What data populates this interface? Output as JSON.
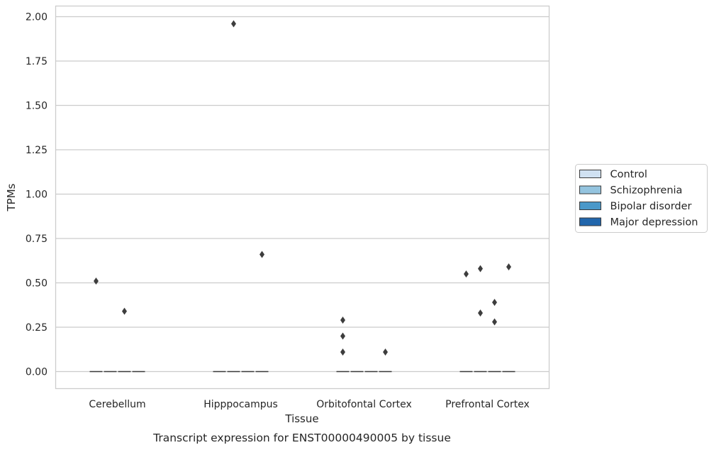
{
  "chart_data": {
    "type": "box",
    "caption": "Transcript expression for ENST00000490005 by tissue",
    "xlabel": "Tissue",
    "ylabel": "TPMs",
    "ylim": [
      -0.1,
      2.06
    ],
    "yticks": [
      "0.00",
      "0.25",
      "0.50",
      "0.75",
      "1.00",
      "1.25",
      "1.50",
      "1.75",
      "2.00"
    ],
    "categories": [
      "Cerebellum",
      "Hipppocampus",
      "Orbitofontal Cortex",
      "Prefrontal Cortex"
    ],
    "grid": true,
    "legend_position": "right",
    "series": [
      {
        "name": "Control",
        "color": "#d0e1f2",
        "medians": [
          0,
          0,
          0,
          0
        ],
        "outliers": [
          [
            0.51
          ],
          [],
          [
            0.29,
            0.2,
            0.11
          ],
          [
            0.55
          ]
        ]
      },
      {
        "name": "Schizophrenia",
        "color": "#94c4df",
        "medians": [
          0,
          0,
          0,
          0
        ],
        "outliers": [
          [],
          [
            1.96
          ],
          [],
          [
            0.58,
            0.33
          ]
        ]
      },
      {
        "name": "Bipolar disorder",
        "color": "#4a98c9",
        "medians": [
          0,
          0,
          0,
          0
        ],
        "outliers": [
          [
            0.34
          ],
          [],
          [],
          [
            0.39,
            0.28
          ]
        ]
      },
      {
        "name": "Major depression",
        "color": "#2166ac",
        "medians": [
          0,
          0,
          0,
          0
        ],
        "outliers": [
          [],
          [
            0.66
          ],
          [
            0.11
          ],
          [
            0.59
          ]
        ]
      }
    ]
  }
}
